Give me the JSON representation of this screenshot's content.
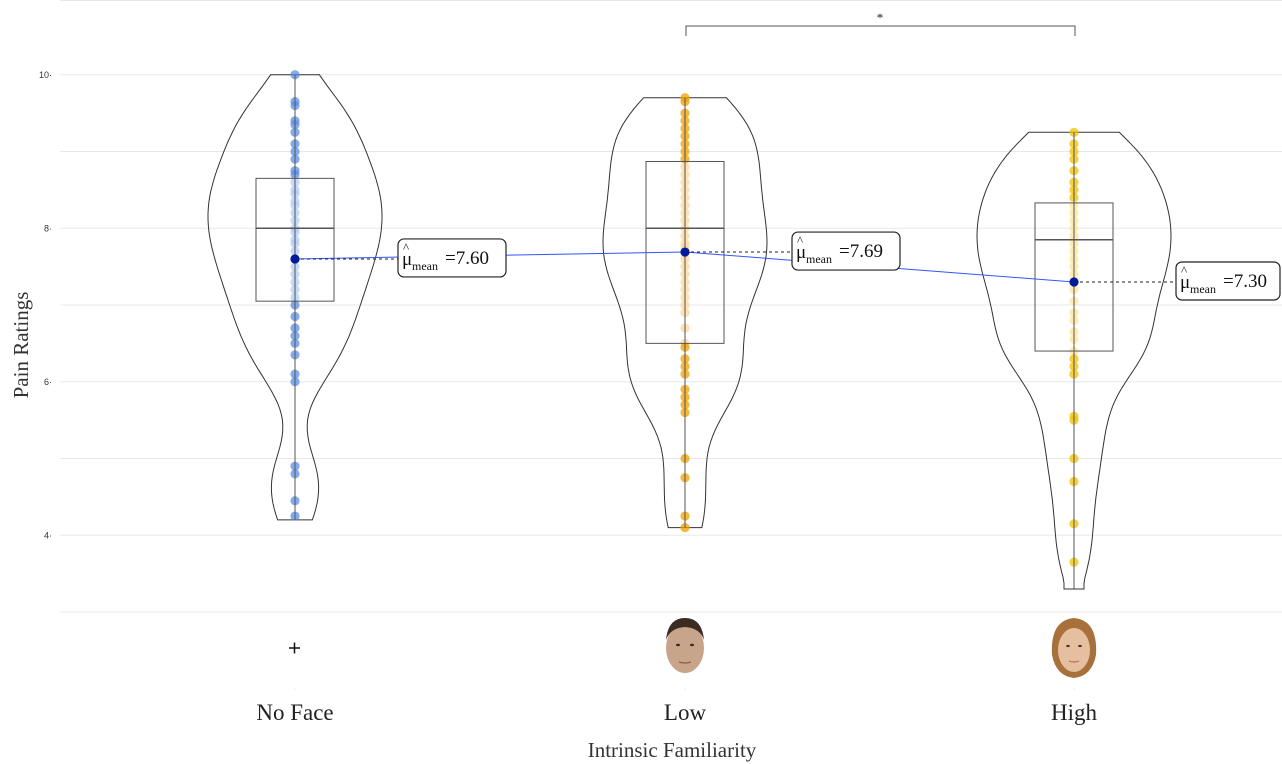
{
  "chart_data": {
    "type": "violin",
    "xlabel": "Intrinsic Familiarity",
    "ylabel": "Pain Ratings",
    "ylim": [
      3.2,
      10.4
    ],
    "y_ticks": [
      "4",
      "6",
      "8",
      "10"
    ],
    "y_tick_values": [
      4,
      6,
      8,
      10
    ],
    "grid": true,
    "categories": [
      "No Face",
      "Low",
      "High"
    ],
    "category_icons": [
      "fixation-cross",
      "male-face-photo",
      "female-face-photo"
    ],
    "series": [
      {
        "category": "No Face",
        "color": "#5b8ee6",
        "light_color": "#b3ccf5",
        "mean": 7.6,
        "mean_label": "7.60",
        "box": {
          "q1": 7.05,
          "median": 8.0,
          "q3": 8.65,
          "min": 4.2,
          "max": 10.0
        },
        "points": [
          10.0,
          9.65,
          9.6,
          9.4,
          9.35,
          9.25,
          9.1,
          9.0,
          8.9,
          8.75,
          8.7,
          8.6,
          8.5,
          8.45,
          8.35,
          8.3,
          8.2,
          8.1,
          8.0,
          7.95,
          7.85,
          7.8,
          7.7,
          7.6,
          7.5,
          7.4,
          7.3,
          7.2,
          7.1,
          7.0,
          6.85,
          6.7,
          6.6,
          6.5,
          6.35,
          6.1,
          6.0,
          4.9,
          4.8,
          4.45,
          4.25
        ]
      },
      {
        "category": "Low",
        "color": "#f0a000",
        "light_color": "#fcd79a",
        "mean": 7.69,
        "mean_label": "7.69",
        "box": {
          "q1": 6.5,
          "median": 8.0,
          "q3": 8.87,
          "min": 4.1,
          "max": 9.7
        },
        "points": [
          9.7,
          9.65,
          9.5,
          9.4,
          9.3,
          9.2,
          9.1,
          9.0,
          8.9,
          8.8,
          8.7,
          8.6,
          8.5,
          8.4,
          8.3,
          8.2,
          8.1,
          8.0,
          7.9,
          7.8,
          7.75,
          7.7,
          7.6,
          7.5,
          7.4,
          7.3,
          7.2,
          7.1,
          7.0,
          6.9,
          6.7,
          6.5,
          6.45,
          6.3,
          6.2,
          6.1,
          5.9,
          5.8,
          5.7,
          5.6,
          5.0,
          4.75,
          4.25,
          4.1
        ]
      },
      {
        "category": "High",
        "color": "#f2c200",
        "light_color": "#fde79a",
        "mean": 7.3,
        "mean_label": "7.30",
        "box": {
          "q1": 6.4,
          "median": 7.85,
          "q3": 8.33,
          "min": 3.3,
          "max": 9.25
        },
        "points": [
          9.25,
          9.1,
          9.0,
          8.9,
          8.75,
          8.6,
          8.5,
          8.4,
          8.3,
          8.2,
          8.1,
          8.0,
          7.9,
          7.8,
          7.7,
          7.6,
          7.5,
          7.4,
          7.3,
          7.2,
          7.05,
          6.9,
          6.8,
          6.65,
          6.55,
          6.4,
          6.3,
          6.2,
          6.1,
          5.55,
          5.5,
          5.0,
          4.7,
          4.15,
          3.65
        ]
      }
    ],
    "mean_label_prefix": "μ",
    "mean_label_subscript": "mean",
    "mean_line_color": "#3355ff",
    "mean_point_color": "#001a99",
    "significance": {
      "from": "Low",
      "to": "High",
      "label": "*"
    }
  }
}
